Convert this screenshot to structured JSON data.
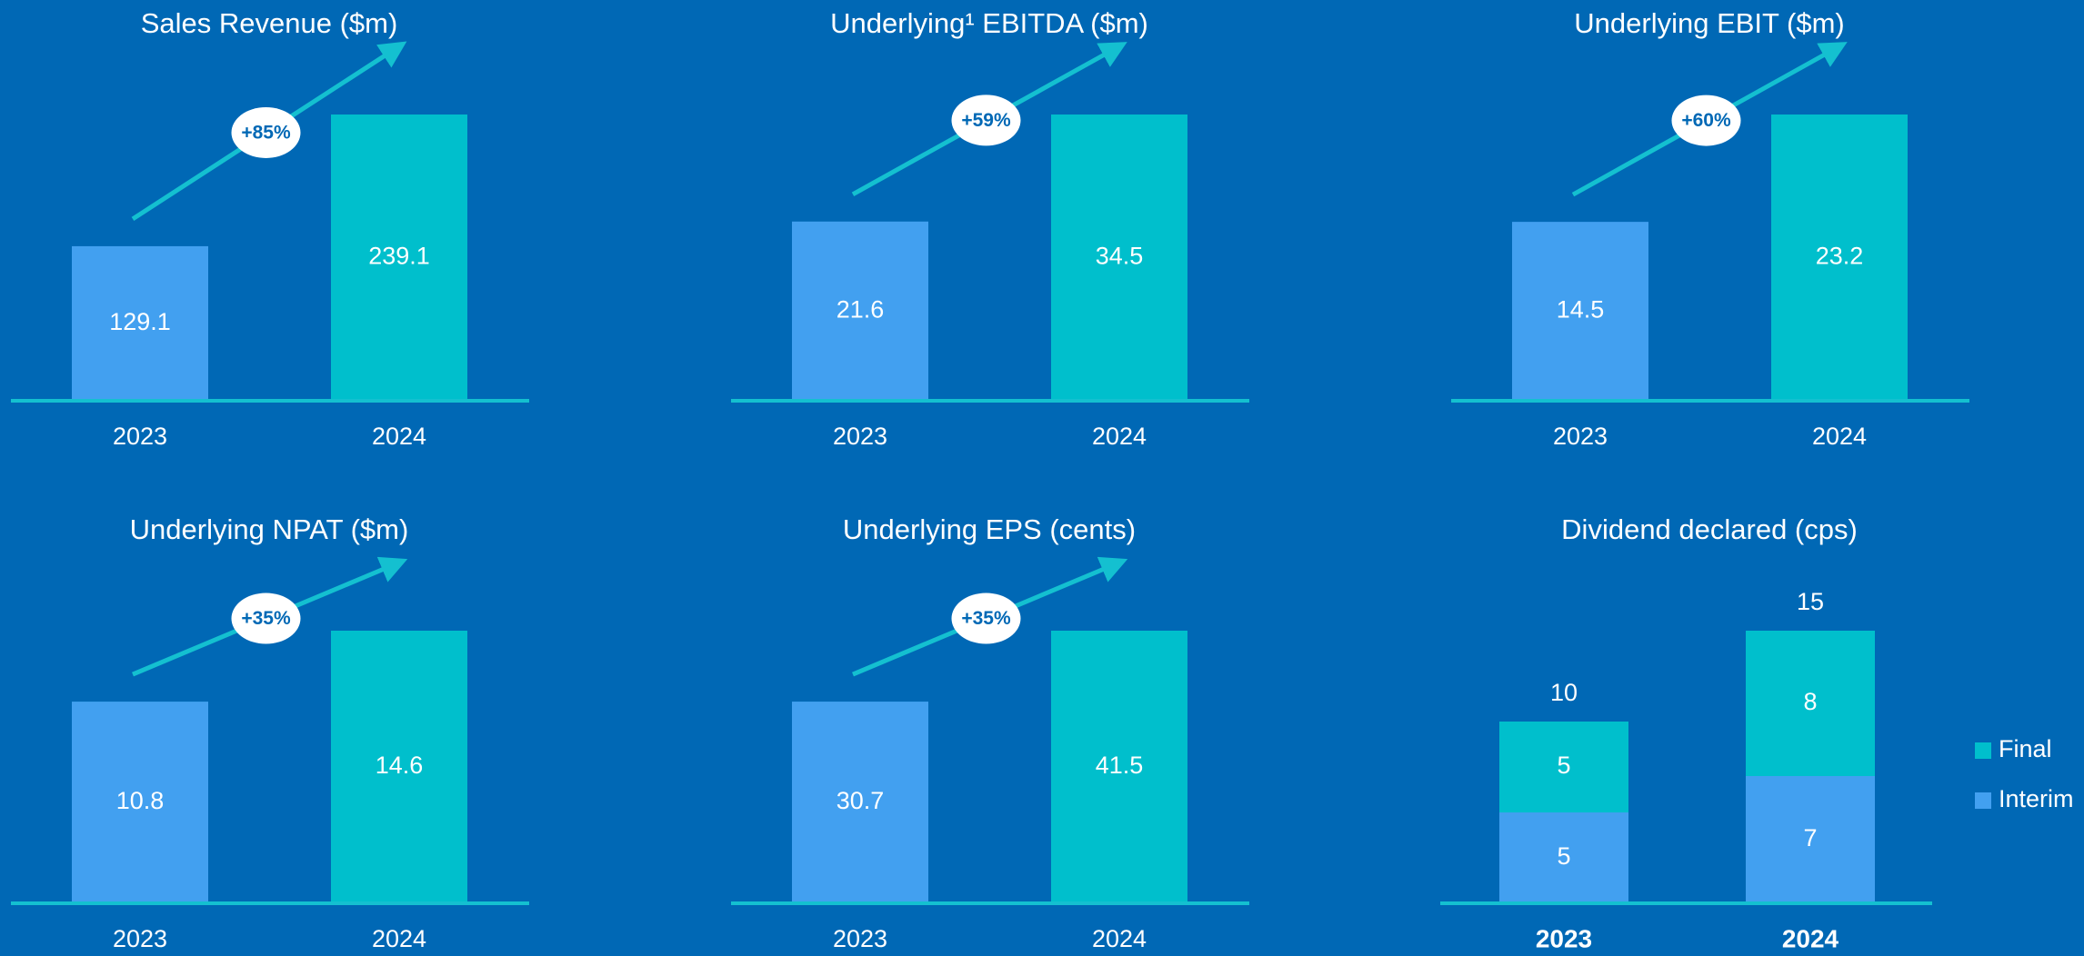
{
  "chart_data": [
    {
      "type": "bar",
      "title": "Sales Revenue ($m)",
      "categories": [
        "2023",
        "2024"
      ],
      "values": [
        129.1,
        239.1
      ],
      "colors": [
        "#42a0f0",
        "#00bfcc"
      ],
      "annotation": "+85%"
    },
    {
      "type": "bar",
      "title": "Underlying¹ EBITDA ($m)",
      "categories": [
        "2023",
        "2024"
      ],
      "values": [
        21.6,
        34.5
      ],
      "colors": [
        "#42a0f0",
        "#00bfcc"
      ],
      "annotation": "+59%"
    },
    {
      "type": "bar",
      "title": "Underlying EBIT ($m)",
      "categories": [
        "2023",
        "2024"
      ],
      "values": [
        14.5,
        23.2
      ],
      "colors": [
        "#42a0f0",
        "#00bfcc"
      ],
      "annotation": "+60%"
    },
    {
      "type": "bar",
      "title": "Underlying NPAT ($m)",
      "categories": [
        "2023",
        "2024"
      ],
      "values": [
        10.8,
        14.6
      ],
      "colors": [
        "#42a0f0",
        "#00bfcc"
      ],
      "annotation": "+35%"
    },
    {
      "type": "bar",
      "title": "Underlying EPS (cents)",
      "categories": [
        "2023",
        "2024"
      ],
      "values": [
        30.7,
        41.5
      ],
      "colors": [
        "#42a0f0",
        "#00bfcc"
      ],
      "annotation": "+35%"
    },
    {
      "type": "stacked_bar",
      "title": "Dividend declared (cps)",
      "categories": [
        "2023",
        "2024"
      ],
      "series": [
        {
          "name": "Interim",
          "color": "#42a0f0",
          "values": [
            5,
            7
          ]
        },
        {
          "name": "Final",
          "color": "#00bfcc",
          "values": [
            5,
            8
          ]
        }
      ],
      "totals": [
        10,
        15
      ],
      "legend": "right"
    }
  ]
}
